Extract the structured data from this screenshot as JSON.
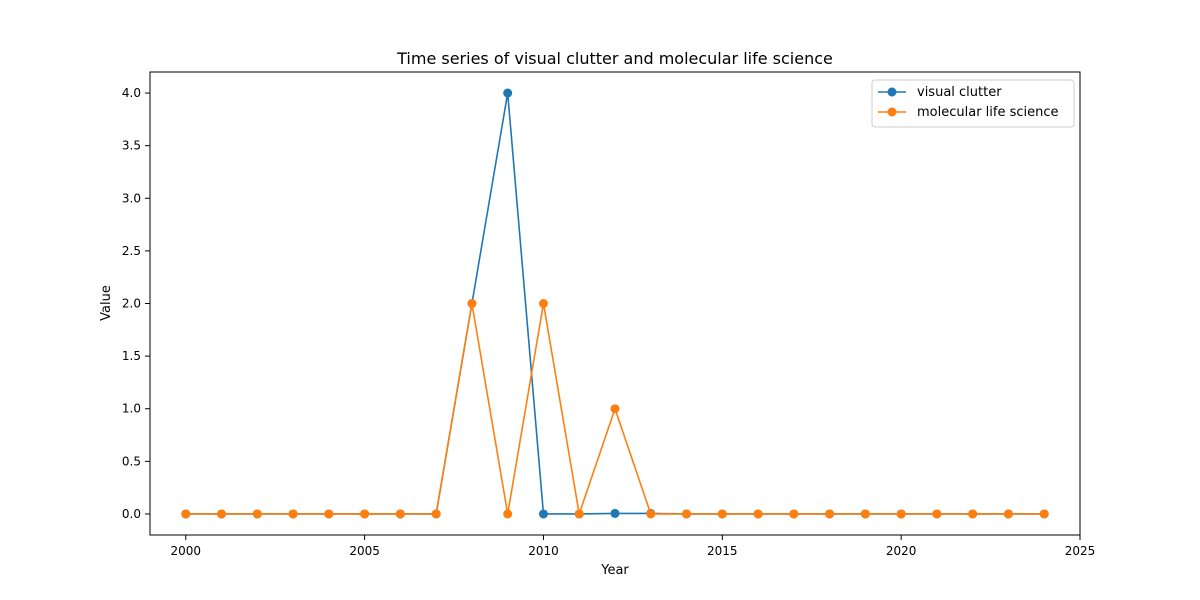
{
  "chart_data": {
    "type": "line",
    "title": "Time series of visual clutter and molecular life science",
    "xlabel": "Year",
    "ylabel": "Value",
    "xlim": [
      1999.0,
      2025.0
    ],
    "ylim": [
      -0.2,
      4.2
    ],
    "x_ticks": [
      2000,
      2005,
      2010,
      2015,
      2020,
      2025
    ],
    "y_ticks": [
      0.0,
      0.5,
      1.0,
      1.5,
      2.0,
      2.5,
      3.0,
      3.5,
      4.0
    ],
    "x_tick_labels": [
      "2000",
      "2005",
      "2010",
      "2015",
      "2020",
      "2025"
    ],
    "y_tick_labels": [
      "0.0",
      "0.5",
      "1.0",
      "1.5",
      "2.0",
      "2.5",
      "3.0",
      "3.5",
      "4.0"
    ],
    "grid": false,
    "legend_position": "top-right",
    "x": [
      2000,
      2001,
      2002,
      2003,
      2004,
      2005,
      2006,
      2007,
      2008,
      2009,
      2010,
      2011,
      2012,
      2013,
      2014,
      2015,
      2016,
      2017,
      2018,
      2019,
      2020,
      2021,
      2022,
      2023,
      2024
    ],
    "series": [
      {
        "name": "visual clutter",
        "color": "#1f77b4",
        "values": [
          0,
          0,
          0,
          0,
          0,
          0,
          0,
          0,
          2,
          4,
          0,
          0,
          0.005,
          0.005,
          0,
          0,
          0,
          0,
          0,
          0,
          0,
          0,
          0,
          0,
          0
        ]
      },
      {
        "name": "molecular life science",
        "color": "#ff7f0e",
        "values": [
          0,
          0,
          0,
          0,
          0,
          0,
          0,
          0,
          2,
          0,
          2,
          0,
          1,
          0,
          0,
          0,
          0,
          0,
          0,
          0,
          0,
          0,
          0,
          0,
          0
        ]
      }
    ]
  }
}
